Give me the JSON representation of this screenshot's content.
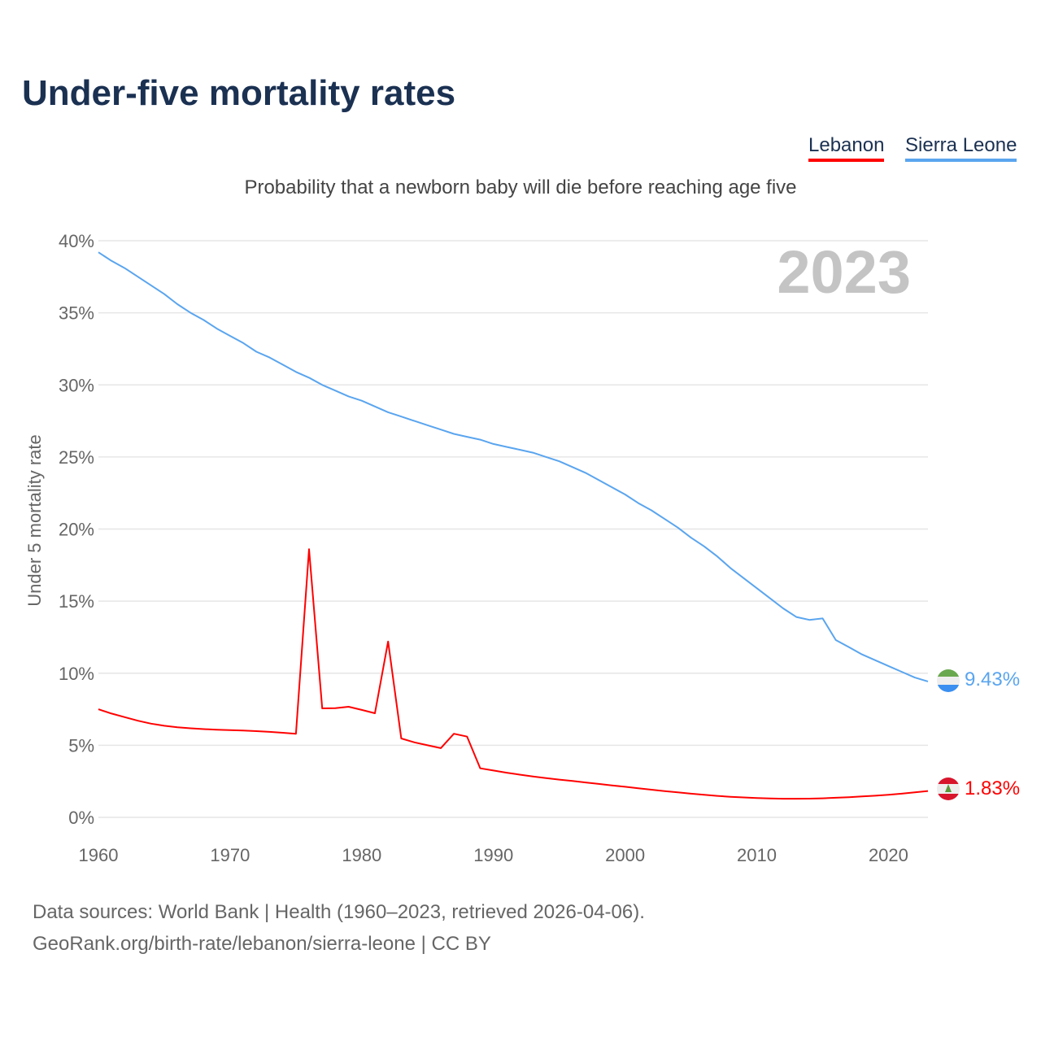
{
  "title": "Under-five mortality rates",
  "subtitle": "Probability that a newborn baby will die before reaching age five",
  "footer": {
    "line1": "Data sources: World Bank | Health (1960–2023, retrieved 2026-04-06).",
    "line2": "GeoRank.org/birth-rate/lebanon/sierra-leone | CC BY"
  },
  "chart_data": {
    "type": "line",
    "title": "Under-five mortality rates",
    "ylabel": "Under 5 mortality rate",
    "xlabel": "",
    "year_label": "2023",
    "xlim": [
      1960,
      2023
    ],
    "ylim": [
      0,
      40
    ],
    "x_ticks": [
      "1960",
      "1970",
      "1980",
      "1990",
      "2000",
      "2010",
      "2020"
    ],
    "y_ticks": [
      "0%",
      "5%",
      "10%",
      "15%",
      "20%",
      "25%",
      "30%",
      "35%",
      "40%"
    ],
    "grid": true,
    "legend_position": "top-right",
    "series": [
      {
        "name": "Lebanon",
        "color": "#ff0000",
        "end_label": "1.83%",
        "values": [
          7.5,
          7.2,
          6.95,
          6.7,
          6.5,
          6.35,
          6.25,
          6.18,
          6.12,
          6.08,
          6.05,
          6.02,
          5.98,
          5.93,
          5.87,
          5.8,
          18.6,
          7.56,
          7.57,
          7.67,
          7.45,
          7.22,
          12.2,
          5.47,
          5.2,
          5.0,
          4.8,
          5.8,
          5.6,
          3.4,
          3.25,
          3.1,
          2.96,
          2.83,
          2.72,
          2.62,
          2.52,
          2.42,
          2.32,
          2.22,
          2.12,
          2.02,
          1.92,
          1.82,
          1.73,
          1.64,
          1.56,
          1.49,
          1.43,
          1.38,
          1.34,
          1.31,
          1.29,
          1.29,
          1.3,
          1.32,
          1.36,
          1.4,
          1.45,
          1.5,
          1.57,
          1.64,
          1.73,
          1.83
        ]
      },
      {
        "name": "Sierra Leone",
        "color": "#5aa5ef",
        "end_label": "9.43%",
        "values": [
          39.2,
          38.6,
          38.1,
          37.5,
          36.9,
          36.3,
          35.6,
          35.0,
          34.5,
          33.9,
          33.4,
          32.9,
          32.3,
          31.9,
          31.4,
          30.9,
          30.5,
          30.0,
          29.6,
          29.2,
          28.9,
          28.5,
          28.1,
          27.8,
          27.5,
          27.2,
          26.9,
          26.6,
          26.4,
          26.2,
          25.9,
          25.7,
          25.5,
          25.3,
          25.0,
          24.7,
          24.3,
          23.9,
          23.4,
          22.9,
          22.4,
          21.8,
          21.3,
          20.7,
          20.1,
          19.4,
          18.8,
          18.1,
          17.3,
          16.6,
          15.9,
          15.2,
          14.5,
          13.9,
          13.7,
          13.8,
          12.3,
          11.8,
          11.3,
          10.9,
          10.5,
          10.1,
          9.7,
          9.43
        ]
      }
    ]
  }
}
